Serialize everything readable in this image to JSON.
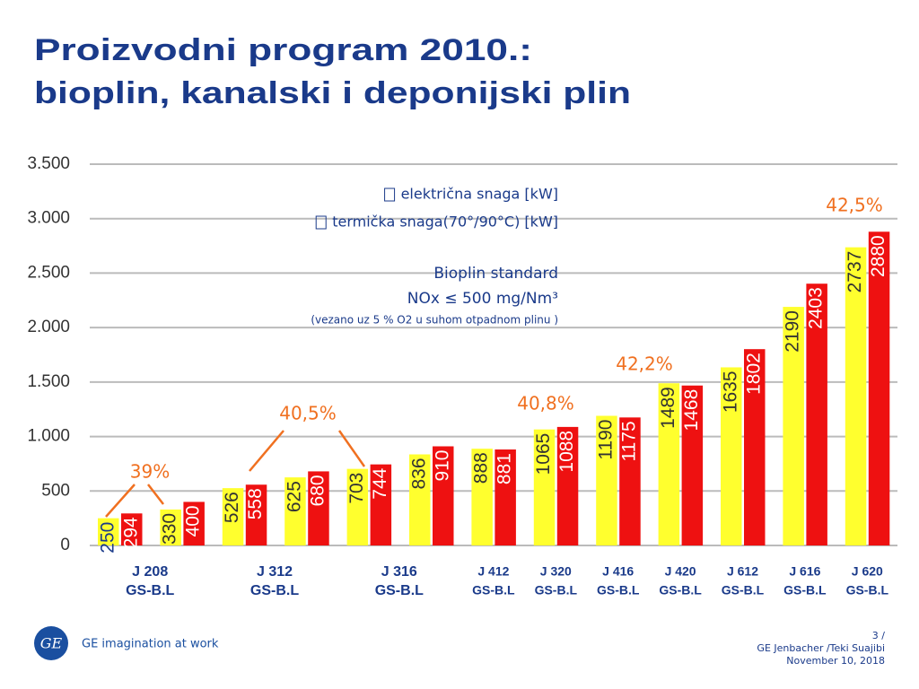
{
  "chart_data": {
    "type": "bar",
    "title": [
      "Proizvodni program 2010.:",
      "bioplin, kanalski i deponijski plin"
    ],
    "categories": [
      [
        "J 208",
        "GS-B.L"
      ],
      null,
      [
        "J 312",
        "GS-B.L"
      ],
      null,
      [
        "J 316",
        "GS-B.L"
      ],
      null,
      [
        "J 412",
        "GS-B.L"
      ],
      [
        "J 320",
        "GS-B.L"
      ],
      [
        "J 416",
        "GS-B.L"
      ],
      [
        "J 420",
        "GS-B.L"
      ],
      [
        "J 612",
        "GS-B.L"
      ],
      [
        "J 616",
        "GS-B.L"
      ],
      [
        "J 620",
        "GS-B.L"
      ]
    ],
    "series": [
      {
        "name": "električna snaga [kW]",
        "color": "#ffff2e",
        "values": [
          250,
          330,
          526,
          625,
          703,
          836,
          888,
          1065,
          1190,
          1489,
          1635,
          2190,
          2737
        ]
      },
      {
        "name": "termička snaga(70°/90°C) [kW]",
        "color": "#ee1111",
        "values": [
          294,
          400,
          558,
          680,
          744,
          910,
          881,
          1088,
          1175,
          1468,
          1802,
          2403,
          2880
        ]
      }
    ],
    "ylim": [
      0,
      3500
    ],
    "yticks": [
      0,
      500,
      {
        "value": 1000,
        "label": "1.000"
      },
      {
        "value": 1500,
        "label": "1.500"
      },
      {
        "value": 2000,
        "label": "2.000"
      },
      {
        "value": 2500,
        "label": "2.500"
      },
      {
        "value": 3000,
        "label": "3.000"
      },
      {
        "value": 3500,
        "label": "3.500"
      }
    ],
    "grid": true,
    "annotations": [
      "39%",
      "40,5%",
      "40,8%",
      "42,2%",
      "42,5%"
    ],
    "notes": [
      "Bioplin standard",
      "NOx ≤ 500 mg/Nm³",
      "(vezano uz 5 % O2 u suhom otpadnom plinu )"
    ]
  },
  "footer": {
    "logo_text": "GE imagination at work",
    "page": "3 /",
    "author": "GE Jenbacher /Teki Suajibi",
    "date": "November 10, 2018"
  }
}
